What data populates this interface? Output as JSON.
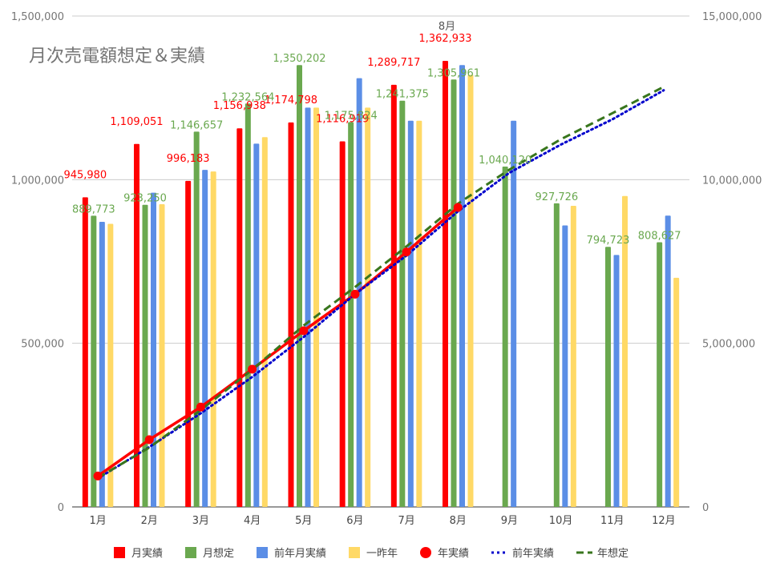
{
  "chart_data": {
    "type": "bar",
    "title": "月次売電額想定＆実績",
    "categories": [
      "1月",
      "2月",
      "3月",
      "4月",
      "5月",
      "6月",
      "7月",
      "8月",
      "9月",
      "10月",
      "11月",
      "12月"
    ],
    "left_axis": {
      "ylim": [
        0,
        1500000
      ],
      "ticks": [
        "0",
        "500,000",
        "1,000,000",
        "1,500,000"
      ],
      "tick_values": [
        0,
        500000,
        1000000,
        1500000
      ]
    },
    "right_axis": {
      "ylim": [
        0,
        15000000
      ],
      "ticks": [
        "0",
        "5,000,000",
        "10,000,000",
        "15,000,000"
      ],
      "tick_values": [
        0,
        5000000,
        10000000,
        15000000
      ]
    },
    "grid": true,
    "legend_position": "bottom",
    "bar_series": [
      {
        "name": "月実績",
        "color": "#ff0000",
        "values": [
          945980,
          1109051,
          996183,
          1156938,
          1174798,
          1116919,
          1289717,
          1362933,
          null,
          null,
          null,
          null
        ],
        "labels": [
          "945,980",
          "1,109,051",
          "996,183",
          "1,156,938",
          "1,174,798",
          "1,116,919",
          "1,289,717",
          "1,362,933",
          null,
          null,
          null,
          null
        ]
      },
      {
        "name": "月想定",
        "color": "#6aa84f",
        "values": [
          889773,
          923250,
          1146657,
          1232564,
          1350202,
          1175824,
          1241375,
          1305961,
          1040120,
          927726,
          794723,
          808627
        ],
        "labels": [
          "889,773",
          "923,250",
          "1,146,657",
          "1,232,564",
          "1,350,202",
          "1,175,824",
          "1,241,375",
          "1,305,961",
          "1,040,120",
          "927,726",
          "794,723",
          "808,627"
        ]
      },
      {
        "name": "前年月実績",
        "color": "#5b8ee6",
        "values": [
          871000,
          960000,
          1030000,
          1110000,
          1220000,
          1310000,
          1180000,
          1350000,
          1180000,
          860000,
          770000,
          890000
        ]
      },
      {
        "name": "一昨年",
        "color": "#ffd966",
        "values": [
          865000,
          925000,
          1025000,
          1130000,
          1220000,
          1220000,
          1180000,
          1320000,
          null,
          920000,
          950000,
          700000
        ]
      }
    ],
    "line_series": [
      {
        "name": "年実績",
        "color": "#ff0000",
        "style": "solid-with-markers",
        "values": [
          945980,
          2055031,
          3051214,
          4208152,
          5382950,
          6499869,
          7789586,
          9152519
        ]
      },
      {
        "name": "前年実績",
        "color": "#0000cc",
        "style": "dotted",
        "values": [
          871000,
          1831000,
          2861000,
          3971000,
          5191000,
          6501000,
          7681000,
          9031000,
          10211000,
          11071000,
          11841000,
          12731000
        ]
      },
      {
        "name": "年想定",
        "color": "#38761d",
        "style": "dashed",
        "values": [
          889773,
          1813023,
          2959680,
          4192244,
          5542446,
          6718270,
          7959645,
          9265606,
          10305726,
          11233452,
          12028175,
          12836802
        ]
      }
    ],
    "annotations": [
      {
        "text": "8月",
        "category": "8月"
      }
    ]
  }
}
